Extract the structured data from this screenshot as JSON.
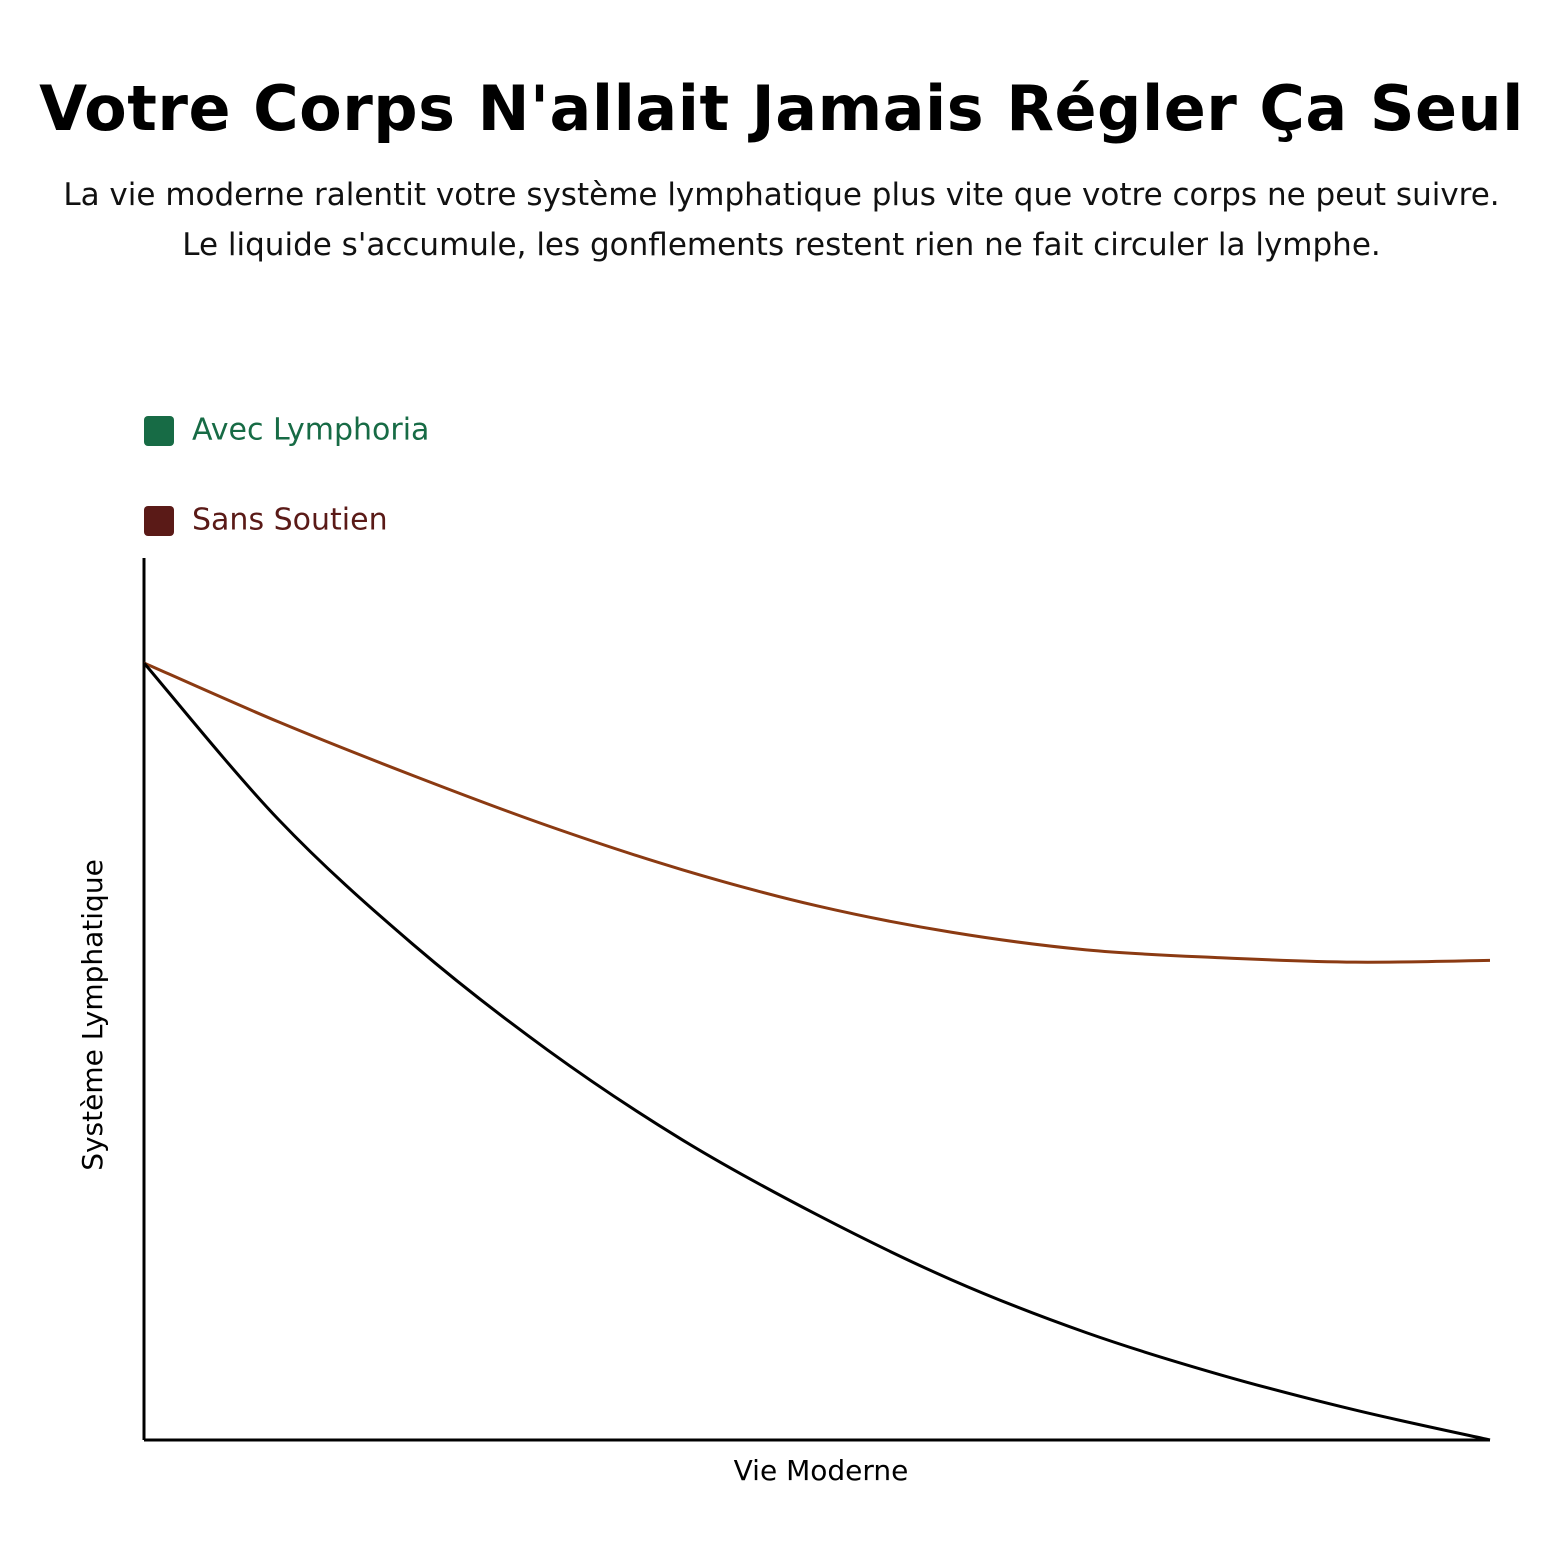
{
  "chart_data": {
    "type": "line",
    "title": "Votre Corps N'allait Jamais Régler Ça Seul",
    "subtitle": "La vie moderne ralentit votre système lymphatique plus vite que votre corps ne peut suivre. Le liquide s'accumule, les gonflements restent rien ne fait circuler la lymphe.",
    "x_label": "Vie Moderne",
    "y_label": "Système Lymphatique",
    "x": [
      0,
      10,
      20,
      30,
      40,
      50,
      60,
      70,
      80,
      90,
      100
    ],
    "xlim": [
      0,
      100
    ],
    "ylim": [
      0,
      100
    ],
    "legend": "top-left",
    "series": [
      {
        "name": "Avec Lymphoria",
        "color": "#8b3a12",
        "legend_color": "#176b45",
        "values": [
          88.3,
          81.6,
          75.5,
          69.8,
          64.8,
          60.7,
          57.7,
          55.7,
          54.8,
          54.3,
          54.5
        ]
      },
      {
        "name": "Sans Soutien",
        "color": "#000000",
        "legend_color": "#5a1a17",
        "values": [
          88.3,
          70.5,
          56.3,
          44.3,
          34.1,
          25.6,
          18.2,
          12.2,
          7.4,
          3.4,
          0
        ]
      }
    ]
  }
}
